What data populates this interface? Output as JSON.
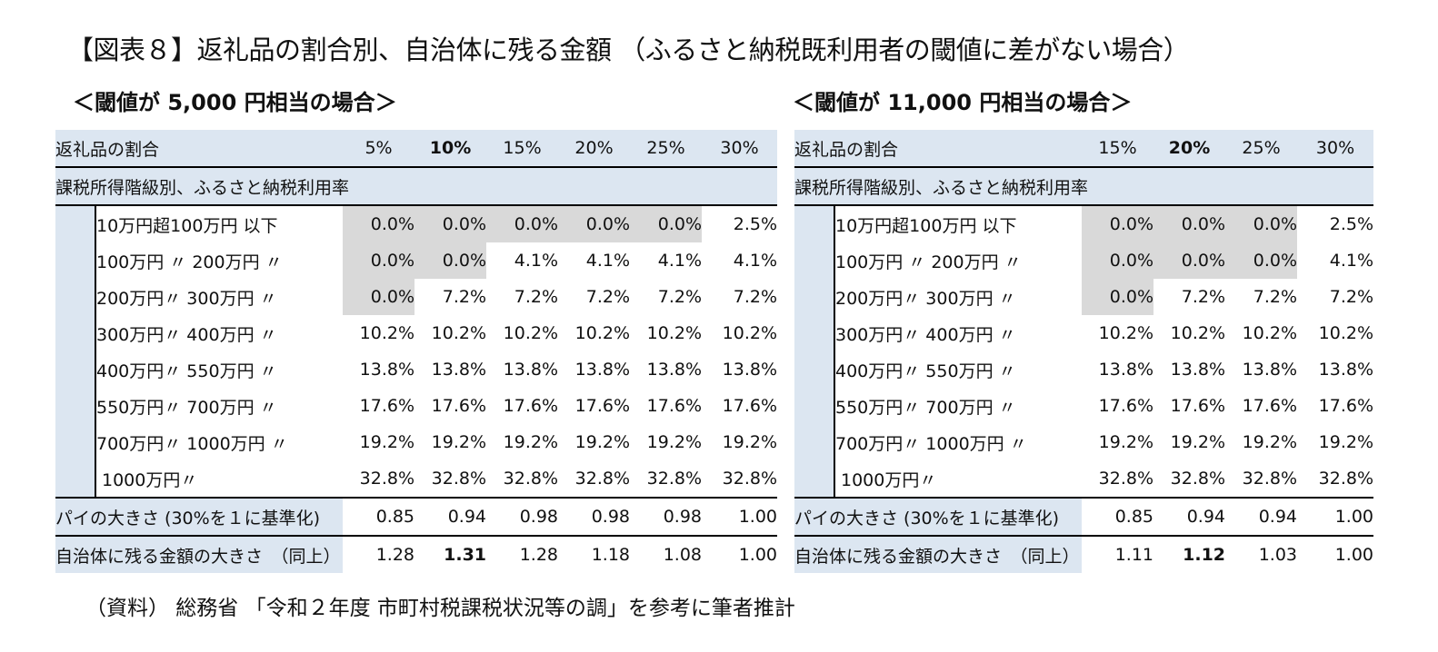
{
  "title": "【図表８】返礼品の割合別、自治体に残る金額 （ふるさと納税既利用者の閾値に差がない場合）",
  "left_subtitle": "＜閾値が 5,000 円相当の場合＞",
  "right_subtitle": "＜閾値が 11,000 円相当の場合＞",
  "source_note": "（資料） 総務省 「令和２年度 市町村税課税状況等の調」を参考に筆者推計",
  "labels": {
    "header": "返礼品の割合",
    "category": "課税所得階級別、ふるさと納税利用率",
    "pie": "パイの大きさ (30%を１に基準化)",
    "remain": "自治体に残る金額の大きさ　（同上）"
  },
  "bands": [
    "10万円超100万円 以下",
    "100万円 〃 200万円 〃",
    "200万円〃 300万円 〃",
    "300万円〃 400万円 〃",
    "400万円〃 550万円 〃",
    "550万円〃 700万円 〃",
    "700万円〃 1000万円 〃",
    "1000万円〃"
  ],
  "left_table": {
    "columns": [
      "5%",
      "10%",
      "15%",
      "20%",
      "25%",
      "30%"
    ],
    "bold_column": 1,
    "rows": [
      [
        "0.0%",
        "0.0%",
        "0.0%",
        "0.0%",
        "0.0%",
        "2.5%"
      ],
      [
        "0.0%",
        "0.0%",
        "4.1%",
        "4.1%",
        "4.1%",
        "4.1%"
      ],
      [
        "0.0%",
        "7.2%",
        "7.2%",
        "7.2%",
        "7.2%",
        "7.2%"
      ],
      [
        "10.2%",
        "10.2%",
        "10.2%",
        "10.2%",
        "10.2%",
        "10.2%"
      ],
      [
        "13.8%",
        "13.8%",
        "13.8%",
        "13.8%",
        "13.8%",
        "13.8%"
      ],
      [
        "17.6%",
        "17.6%",
        "17.6%",
        "17.6%",
        "17.6%",
        "17.6%"
      ],
      [
        "19.2%",
        "19.2%",
        "19.2%",
        "19.2%",
        "19.2%",
        "19.2%"
      ],
      [
        "32.8%",
        "32.8%",
        "32.8%",
        "32.8%",
        "32.8%",
        "32.8%"
      ]
    ],
    "pie": [
      "0.85",
      "0.94",
      "0.98",
      "0.98",
      "0.98",
      "1.00"
    ],
    "remain": [
      "1.28",
      "1.31",
      "1.28",
      "1.18",
      "1.08",
      "1.00"
    ]
  },
  "right_table": {
    "columns": [
      "15%",
      "20%",
      "25%",
      "30%"
    ],
    "bold_column": 1,
    "rows": [
      [
        "0.0%",
        "0.0%",
        "0.0%",
        "2.5%"
      ],
      [
        "0.0%",
        "0.0%",
        "0.0%",
        "4.1%"
      ],
      [
        "0.0%",
        "7.2%",
        "7.2%",
        "7.2%"
      ],
      [
        "10.2%",
        "10.2%",
        "10.2%",
        "10.2%"
      ],
      [
        "13.8%",
        "13.8%",
        "13.8%",
        "13.8%"
      ],
      [
        "17.6%",
        "17.6%",
        "17.6%",
        "17.6%"
      ],
      [
        "19.2%",
        "19.2%",
        "19.2%",
        "19.2%"
      ],
      [
        "32.8%",
        "32.8%",
        "32.8%",
        "32.8%"
      ]
    ],
    "pie": [
      "0.85",
      "0.94",
      "0.94",
      "1.00"
    ],
    "remain": [
      "1.11",
      "1.12",
      "1.03",
      "1.00"
    ]
  },
  "colors": {
    "label_bg": "#dce6f1",
    "zero_bg": "#d9d9d9"
  }
}
